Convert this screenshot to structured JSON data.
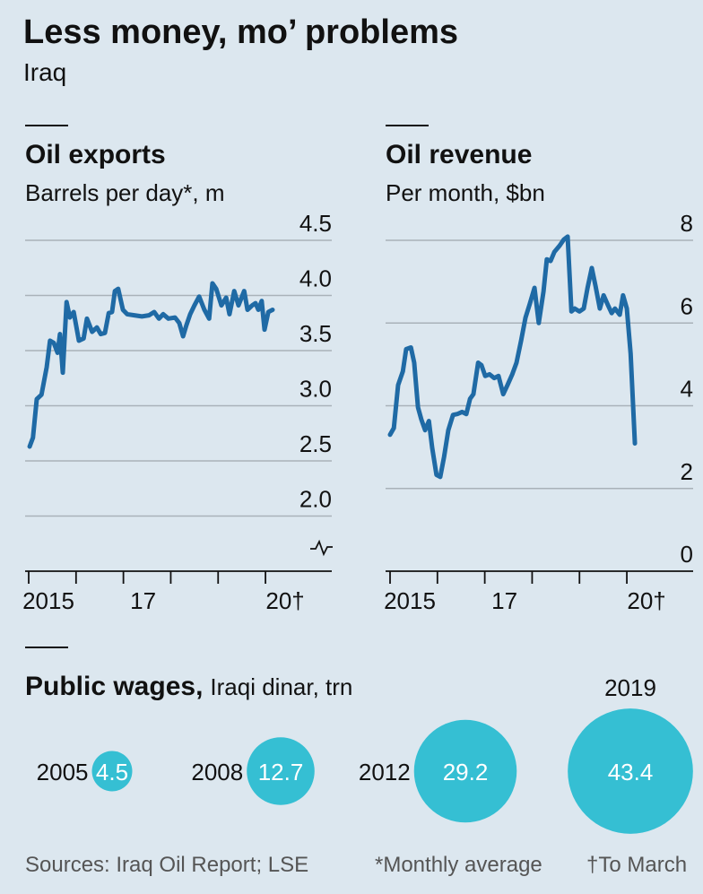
{
  "title": "Less money, mo’ problems",
  "subtitle": "Iraq",
  "source": "Sources: Iraq Oil Report; LSE",
  "notes": [
    "*Monthly average",
    "†To March"
  ],
  "chart_data": [
    {
      "type": "line",
      "title": "Oil exports",
      "subtitle": "Barrels per day*, m",
      "color": "#1f6aa5",
      "grid": true,
      "xlim": [
        2015,
        2021.4
      ],
      "ylim": [
        1.5,
        4.5
      ],
      "yticks": [
        4.5,
        {
          "value": 4,
          "label": "4.0"
        },
        3.5,
        {
          "value": 3,
          "label": "3.0"
        },
        2.5,
        {
          "value": 2,
          "label": "2.0"
        }
      ],
      "xticks": [
        {
          "value": 2015,
          "label": "2015"
        },
        {
          "value": 2017,
          "label": "17"
        },
        {
          "value": 2020,
          "label": "20†"
        }
      ],
      "xminor": [
        2016,
        2018,
        2019
      ],
      "x": [
        2015.02,
        2015.09,
        2015.17,
        2015.27,
        2015.38,
        2015.45,
        2015.53,
        2015.61,
        2015.66,
        2015.72,
        2015.8,
        2015.87,
        2015.95,
        2016.06,
        2016.16,
        2016.23,
        2016.34,
        2016.44,
        2016.52,
        2016.61,
        2016.69,
        2016.76,
        2016.82,
        2016.89,
        2016.99,
        2017.08,
        2017.23,
        2017.39,
        2017.54,
        2017.65,
        2017.75,
        2017.84,
        2017.95,
        2018.09,
        2018.18,
        2018.26,
        2018.33,
        2018.41,
        2018.5,
        2018.6,
        2018.71,
        2018.81,
        2018.88,
        2018.96,
        2019.07,
        2019.17,
        2019.24,
        2019.34,
        2019.43,
        2019.55,
        2019.62,
        2019.72,
        2019.79,
        2019.85,
        2019.92,
        2019.98,
        2020.06,
        2020.15
      ],
      "values": [
        2.63,
        2.71,
        3.06,
        3.1,
        3.35,
        3.59,
        3.57,
        3.48,
        3.65,
        3.3,
        3.94,
        3.8,
        3.85,
        3.59,
        3.61,
        3.79,
        3.67,
        3.71,
        3.65,
        3.66,
        3.84,
        3.85,
        4.04,
        4.06,
        3.87,
        3.83,
        3.82,
        3.81,
        3.82,
        3.85,
        3.79,
        3.83,
        3.79,
        3.8,
        3.75,
        3.63,
        3.73,
        3.83,
        3.91,
        3.99,
        3.87,
        3.79,
        4.11,
        4.06,
        3.91,
        3.98,
        3.83,
        4.04,
        3.91,
        4.04,
        3.87,
        3.91,
        3.93,
        3.87,
        3.95,
        3.69,
        3.85,
        3.87
      ]
    },
    {
      "type": "line",
      "title": "Oil revenue",
      "subtitle": "Per month, $bn",
      "color": "#1f6aa5",
      "grid": true,
      "xlim": [
        2015,
        2021.4
      ],
      "ylim": [
        0,
        8
      ],
      "yticks": [
        8,
        6,
        4,
        2,
        0
      ],
      "xticks": [
        {
          "value": 2015,
          "label": "2015"
        },
        {
          "value": 2017,
          "label": "17"
        },
        {
          "value": 2020,
          "label": "20†"
        }
      ],
      "xminor": [
        2016,
        2018,
        2019
      ],
      "x": [
        2015.0,
        2015.08,
        2015.17,
        2015.27,
        2015.34,
        2015.44,
        2015.51,
        2015.59,
        2015.66,
        2015.74,
        2015.82,
        2015.89,
        2015.98,
        2016.06,
        2016.14,
        2016.23,
        2016.33,
        2016.42,
        2016.52,
        2016.61,
        2016.69,
        2016.76,
        2016.86,
        2016.93,
        2017.01,
        2017.1,
        2017.2,
        2017.29,
        2017.39,
        2017.48,
        2017.58,
        2017.67,
        2017.77,
        2017.86,
        2017.95,
        2018.05,
        2018.14,
        2018.24,
        2018.31,
        2018.39,
        2018.47,
        2018.58,
        2018.67,
        2018.75,
        2018.83,
        2018.9,
        2019.0,
        2019.09,
        2019.17,
        2019.26,
        2019.34,
        2019.43,
        2019.51,
        2019.61,
        2019.68,
        2019.75,
        2019.85,
        2019.92,
        2020.0,
        2020.08,
        2020.17
      ],
      "values": [
        3.3,
        3.46,
        4.5,
        4.83,
        5.37,
        5.41,
        5.04,
        3.96,
        3.67,
        3.41,
        3.63,
        2.98,
        2.33,
        2.28,
        2.76,
        3.41,
        3.78,
        3.8,
        3.85,
        3.8,
        4.17,
        4.28,
        5.04,
        4.98,
        4.72,
        4.76,
        4.67,
        4.72,
        4.28,
        4.5,
        4.76,
        5.04,
        5.59,
        6.13,
        6.46,
        6.85,
        6.0,
        6.76,
        7.54,
        7.5,
        7.72,
        7.87,
        8.02,
        8.09,
        6.28,
        6.35,
        6.28,
        6.35,
        6.85,
        7.33,
        6.89,
        6.35,
        6.67,
        6.41,
        6.24,
        6.35,
        6.2,
        6.67,
        6.35,
        5.26,
        3.09
      ]
    },
    {
      "type": "bubble",
      "title": "Public wages,",
      "subtitle": "Iraqi dinar, trn",
      "color": "#35bfd3",
      "categories": [
        "2005",
        "2008",
        "2012",
        "2019"
      ],
      "values": [
        4.5,
        12.7,
        29.2,
        43.4
      ]
    }
  ]
}
